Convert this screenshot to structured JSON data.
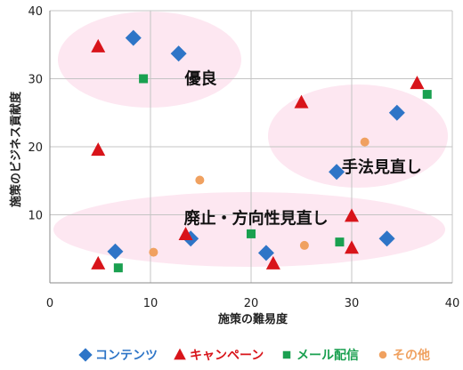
{
  "chart_data": {
    "type": "scatter",
    "xlabel": "施策の難易度",
    "ylabel": "施策のビジネス貢献度",
    "xlim": [
      0,
      40
    ],
    "ylim": [
      0,
      40
    ],
    "x_ticks": [
      "0",
      "10",
      "20",
      "30",
      "40"
    ],
    "y_ticks": [
      "10",
      "20",
      "30",
      "40"
    ],
    "grid": true,
    "legend_position": "bottom",
    "series": [
      {
        "name": "コンテンツ",
        "marker": "diamond",
        "color": "#2e75c7",
        "points": [
          [
            8.3,
            36
          ],
          [
            12.8,
            33.7
          ],
          [
            34.5,
            25
          ],
          [
            28.5,
            16.3
          ],
          [
            33.5,
            6.5
          ],
          [
            6.5,
            4.6
          ],
          [
            14,
            6.5
          ],
          [
            21.5,
            4.4
          ]
        ]
      },
      {
        "name": "キャンペーン",
        "marker": "triangle",
        "color": "#d8141a",
        "points": [
          [
            4.8,
            34.7
          ],
          [
            36.5,
            29.3
          ],
          [
            25,
            26.5
          ],
          [
            4.8,
            19.5
          ],
          [
            30,
            9.8
          ],
          [
            13.5,
            7.1
          ],
          [
            30,
            5.1
          ],
          [
            4.8,
            2.8
          ],
          [
            22.2,
            2.8
          ]
        ]
      },
      {
        "name": "メール配信",
        "marker": "square",
        "color": "#1aa050",
        "points": [
          [
            9.3,
            30
          ],
          [
            37.5,
            27.7
          ],
          [
            20,
            7.2
          ],
          [
            28.8,
            6
          ],
          [
            6.8,
            2.2
          ]
        ]
      },
      {
        "name": "その他",
        "marker": "circle",
        "color": "#f0a160",
        "points": [
          [
            31.3,
            20.7
          ],
          [
            14.9,
            15.1
          ],
          [
            25.3,
            5.5
          ],
          [
            10.3,
            4.5
          ]
        ]
      }
    ],
    "annotations": [
      {
        "text": "優良",
        "x": 15,
        "y": 30
      },
      {
        "text": "手法見直し",
        "x": 33,
        "y": 17
      },
      {
        "text": "廃止・方向性見直し",
        "x": 20.5,
        "y": 9.5
      }
    ]
  }
}
